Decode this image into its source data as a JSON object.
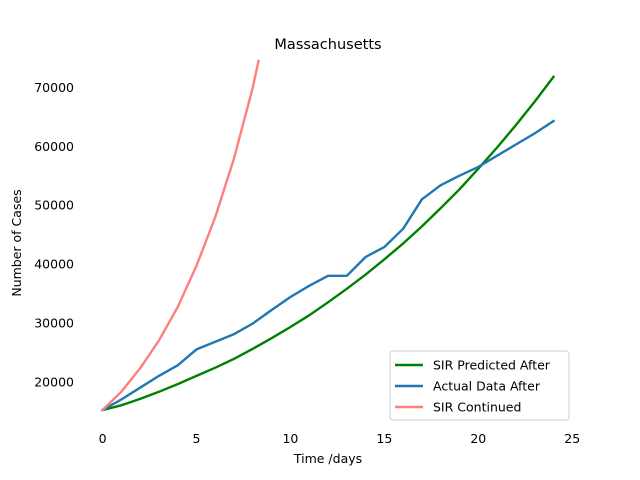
{
  "chart_data": {
    "type": "line",
    "title": "Massachusetts",
    "xlabel": "Time /days",
    "ylabel": "Number of Cases",
    "xlim": [
      -1.2,
      25.2
    ],
    "ylim": [
      13000,
      75000
    ],
    "xticks": [
      0,
      5,
      10,
      15,
      20,
      25
    ],
    "yticks": [
      20000,
      30000,
      40000,
      50000,
      60000,
      70000
    ],
    "grid": false,
    "legend_position": "lower-right",
    "series": [
      {
        "name": "SIR Predicted After",
        "color": "#008000",
        "x": [
          0,
          1,
          2,
          3,
          4,
          5,
          6,
          7,
          8,
          9,
          10,
          11,
          12,
          13,
          14,
          15,
          16,
          17,
          18,
          19,
          20,
          21,
          22,
          23,
          24
        ],
        "y": [
          15200,
          16000,
          17100,
          18300,
          19600,
          21000,
          22400,
          23900,
          25600,
          27400,
          29300,
          31300,
          33500,
          35800,
          38200,
          40800,
          43500,
          46400,
          49500,
          52700,
          56200,
          59800,
          63600,
          67600,
          71800
        ]
      },
      {
        "name": "Actual Data After",
        "color": "#1f77b4",
        "x": [
          0,
          1,
          2,
          3,
          4,
          5,
          6,
          7,
          8,
          9,
          10,
          11,
          12,
          13,
          14,
          15,
          16,
          17,
          18,
          19,
          20,
          21,
          22,
          23,
          24
        ],
        "y": [
          15200,
          17000,
          19000,
          21000,
          22800,
          25500,
          26800,
          28100,
          29900,
          32200,
          34400,
          36300,
          38000,
          38000,
          41200,
          42900,
          46000,
          51000,
          53400,
          55000,
          56500,
          58400,
          60300,
          62200,
          64300
        ]
      },
      {
        "name": "SIR Continued",
        "color": "#ff7f7f",
        "x": [
          0,
          1,
          2,
          3,
          4,
          5,
          6,
          7,
          8,
          8.3
        ],
        "y": [
          15200,
          18300,
          22300,
          27000,
          32700,
          39700,
          48000,
          58000,
          70000,
          74500
        ]
      }
    ]
  }
}
